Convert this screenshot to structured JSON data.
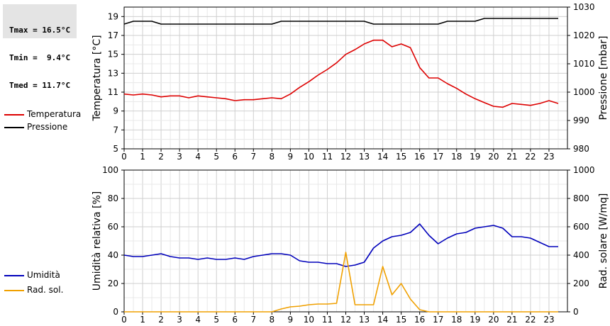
{
  "stats": {
    "tmax": "Tmax = 16.5°C",
    "tmin": "Tmin =  9.4°C",
    "tmed": "Tmed = 11.7°C"
  },
  "legend_top": [
    {
      "label": "Temperatura",
      "color": "#dd0000"
    },
    {
      "label": "Pressione",
      "color": "#000000"
    }
  ],
  "legend_bottom": [
    {
      "label": "Umidità",
      "color": "#0000bb"
    },
    {
      "label": "Rad. sol.",
      "color": "#f0a000"
    }
  ],
  "chart_data": [
    {
      "type": "line",
      "ylabel": "Temperatura [°C]",
      "y2label": "Pressione [mbar]",
      "xlim": [
        0,
        24
      ],
      "ylim": [
        5,
        20
      ],
      "y2lim": [
        980,
        1030
      ],
      "xticks": [
        0,
        1,
        2,
        3,
        4,
        5,
        6,
        7,
        8,
        9,
        10,
        11,
        12,
        13,
        14,
        15,
        16,
        17,
        18,
        19,
        20,
        21,
        22,
        23
      ],
      "yticks": [
        5,
        7,
        9,
        11,
        13,
        15,
        17,
        19
      ],
      "y2ticks": [
        980,
        990,
        1000,
        1010,
        1020,
        1030
      ],
      "grid": true,
      "series": [
        {
          "name": "Temperatura",
          "axis": "left",
          "color": "#dd0000",
          "x": [
            0,
            0.5,
            1,
            1.5,
            2,
            2.5,
            3,
            3.5,
            4,
            4.5,
            5,
            5.5,
            6,
            6.5,
            7,
            7.5,
            8,
            8.5,
            9,
            9.5,
            10,
            10.5,
            11,
            11.5,
            12,
            12.5,
            13,
            13.5,
            14,
            14.5,
            15,
            15.5,
            16,
            16.5,
            17,
            17.5,
            18,
            18.5,
            19,
            19.5,
            20,
            20.5,
            21,
            21.5,
            22,
            22.5,
            23,
            23.5
          ],
          "y": [
            10.8,
            10.7,
            10.8,
            10.7,
            10.5,
            10.6,
            10.6,
            10.4,
            10.6,
            10.5,
            10.4,
            10.3,
            10.1,
            10.2,
            10.2,
            10.3,
            10.4,
            10.3,
            10.8,
            11.5,
            12.1,
            12.8,
            13.4,
            14.1,
            15.0,
            15.5,
            16.1,
            16.5,
            16.5,
            15.8,
            16.1,
            15.7,
            13.6,
            12.5,
            12.5,
            11.9,
            11.4,
            10.8,
            10.3,
            9.9,
            9.5,
            9.4,
            9.8,
            9.7,
            9.6,
            9.8,
            10.1,
            9.8
          ]
        },
        {
          "name": "Pressione",
          "axis": "right",
          "color": "#000000",
          "x": [
            0,
            0.5,
            1,
            1.5,
            2,
            2.5,
            3,
            3.5,
            4,
            4.5,
            5,
            5.5,
            6,
            6.5,
            7,
            7.5,
            8,
            8.5,
            9,
            9.5,
            10,
            10.5,
            11,
            11.5,
            12,
            12.5,
            13,
            13.5,
            14,
            14.5,
            15,
            15.5,
            16,
            16.5,
            17,
            17.5,
            18,
            18.5,
            19,
            19.5,
            20,
            20.5,
            21,
            21.5,
            22,
            22.5,
            23,
            23.5
          ],
          "y": [
            1024,
            1025,
            1025,
            1025,
            1024,
            1024,
            1024,
            1024,
            1024,
            1024,
            1024,
            1024,
            1024,
            1024,
            1024,
            1024,
            1024,
            1025,
            1025,
            1025,
            1025,
            1025,
            1025,
            1025,
            1025,
            1025,
            1025,
            1024,
            1024,
            1024,
            1024,
            1024,
            1024,
            1024,
            1024,
            1025,
            1025,
            1025,
            1025,
            1026,
            1026,
            1026,
            1026,
            1026,
            1026,
            1026,
            1026,
            1026
          ]
        }
      ]
    },
    {
      "type": "line",
      "ylabel": "Umidità relativa [%]",
      "y2label": "Rad. solare [W/mq]",
      "xlim": [
        0,
        24
      ],
      "ylim": [
        0,
        100
      ],
      "y2lim": [
        0,
        1000
      ],
      "xticks": [
        0,
        1,
        2,
        3,
        4,
        5,
        6,
        7,
        8,
        9,
        10,
        11,
        12,
        13,
        14,
        15,
        16,
        17,
        18,
        19,
        20,
        21,
        22,
        23
      ],
      "yticks": [
        0,
        20,
        40,
        60,
        80,
        100
      ],
      "y2ticks": [
        0,
        200,
        400,
        600,
        800,
        1000
      ],
      "grid": true,
      "series": [
        {
          "name": "Umidità",
          "axis": "left",
          "color": "#0000bb",
          "x": [
            0,
            0.5,
            1,
            1.5,
            2,
            2.5,
            3,
            3.5,
            4,
            4.5,
            5,
            5.5,
            6,
            6.5,
            7,
            7.5,
            8,
            8.5,
            9,
            9.5,
            10,
            10.5,
            11,
            11.5,
            12,
            12.5,
            13,
            13.5,
            14,
            14.5,
            15,
            15.5,
            16,
            16.5,
            17,
            17.5,
            18,
            18.5,
            19,
            19.5,
            20,
            20.5,
            21,
            21.5,
            22,
            22.5,
            23,
            23.5
          ],
          "y": [
            40,
            39,
            39,
            40,
            41,
            39,
            38,
            38,
            37,
            38,
            37,
            37,
            38,
            37,
            39,
            40,
            41,
            41,
            40,
            36,
            35,
            35,
            34,
            34,
            32,
            33,
            35,
            45,
            50,
            53,
            54,
            56,
            62,
            54,
            48,
            52,
            55,
            56,
            59,
            60,
            61,
            59,
            53,
            53,
            52,
            49,
            46,
            46
          ]
        },
        {
          "name": "Rad. sol.",
          "axis": "right",
          "color": "#f0a000",
          "x": [
            0,
            0.5,
            1,
            1.5,
            2,
            2.5,
            3,
            3.5,
            4,
            4.5,
            5,
            5.5,
            6,
            6.5,
            7,
            7.5,
            8,
            8.5,
            9,
            9.5,
            10,
            10.5,
            11,
            11.5,
            12,
            12.5,
            13,
            13.5,
            14,
            14.5,
            15,
            15.5,
            16,
            16.5,
            17,
            17.5,
            18,
            18.5,
            19,
            19.5,
            20,
            20.5,
            21,
            21.5,
            22,
            22.5,
            23,
            23.5
          ],
          "y": [
            0,
            0,
            0,
            0,
            0,
            0,
            0,
            0,
            0,
            0,
            0,
            0,
            0,
            0,
            0,
            0,
            0,
            20,
            35,
            40,
            50,
            55,
            55,
            60,
            420,
            50,
            50,
            50,
            320,
            120,
            200,
            90,
            15,
            0,
            0,
            0,
            0,
            0,
            0,
            0,
            0,
            0,
            0,
            0,
            0,
            0,
            0,
            0
          ]
        }
      ]
    }
  ]
}
